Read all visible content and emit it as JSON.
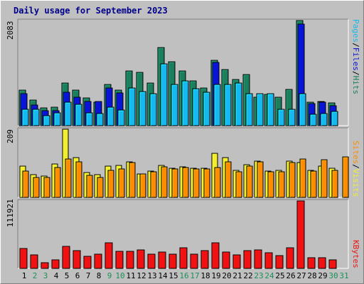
{
  "title": "Daily usage for September 2023",
  "colors": {
    "hits": "#1b7f5e",
    "files": "#0a14d6",
    "pages": "#16b9ef",
    "visits": "#f2ee2e",
    "sites": "#ff8c00",
    "kbytes": "#f01212",
    "weekday_label": "#000000",
    "weekend_label": "#1b8f5a",
    "background": "#c0c0c0"
  },
  "chart_data": [
    {
      "type": "bar",
      "name": "pages-files-hits",
      "legend": [
        "Pages",
        "Files",
        "Hits"
      ],
      "ymax_label": "2083",
      "ylim": [
        0,
        2083
      ],
      "categories": [
        "1",
        "2",
        "3",
        "4",
        "5",
        "6",
        "7",
        "8",
        "9",
        "10",
        "11",
        "12",
        "13",
        "14",
        "15",
        "16",
        "17",
        "18",
        "19",
        "20",
        "21",
        "22",
        "23",
        "24",
        "25",
        "26",
        "27",
        "28",
        "29",
        "30",
        "31"
      ],
      "series": [
        {
          "name": "Hits",
          "values": [
            700,
            500,
            350,
            360,
            850,
            700,
            550,
            470,
            820,
            700,
            1090,
            1060,
            840,
            1550,
            1270,
            1080,
            880,
            740,
            1300,
            1110,
            920,
            1010,
            560,
            620,
            560,
            720,
            2083,
            460,
            480,
            450,
            0
          ]
        },
        {
          "name": "Files",
          "values": [
            630,
            410,
            300,
            290,
            660,
            570,
            480,
            480,
            750,
            650,
            0,
            0,
            0,
            0,
            0,
            0,
            0,
            0,
            1250,
            0,
            0,
            0,
            0,
            0,
            0,
            0,
            2010,
            440,
            460,
            390,
            0
          ]
        },
        {
          "name": "Pages",
          "values": [
            330,
            330,
            200,
            250,
            460,
            420,
            260,
            240,
            370,
            310,
            740,
            680,
            640,
            1220,
            810,
            880,
            730,
            660,
            810,
            820,
            840,
            640,
            640,
            640,
            320,
            330,
            630,
            230,
            240,
            280,
            0
          ]
        }
      ]
    },
    {
      "type": "bar",
      "name": "sites-visits",
      "legend": [
        "Sites",
        "Visits"
      ],
      "ymax_label": "209",
      "ylim": [
        0,
        209
      ],
      "categories": [
        "1",
        "2",
        "3",
        "4",
        "5",
        "6",
        "7",
        "8",
        "9",
        "10",
        "11",
        "12",
        "13",
        "14",
        "15",
        "16",
        "17",
        "18",
        "19",
        "20",
        "21",
        "22",
        "23",
        "24",
        "25",
        "26",
        "27",
        "28",
        "29",
        "30",
        "31"
      ],
      "series": [
        {
          "name": "Visits",
          "values": [
            95,
            70,
            65,
            102,
            209,
            123,
            76,
            70,
            95,
            97,
            108,
            72,
            80,
            97,
            90,
            93,
            90,
            90,
            135,
            122,
            82,
            100,
            112,
            80,
            82,
            110,
            107,
            82,
            96,
            90,
            0
          ]
        },
        {
          "name": "Sites",
          "values": [
            81,
            60,
            61,
            91,
            118,
            108,
            67,
            62,
            83,
            86,
            107,
            71,
            78,
            94,
            87,
            91,
            88,
            88,
            92,
            108,
            78,
            95,
            109,
            78,
            79,
            107,
            117,
            81,
            115,
            82,
            124
          ]
        }
      ]
    },
    {
      "type": "bar",
      "name": "kbytes",
      "legend": [
        "KBytes"
      ],
      "ymax_label": "111921",
      "ylim": [
        0,
        111921
      ],
      "categories": [
        "1",
        "2",
        "3",
        "4",
        "5",
        "6",
        "7",
        "8",
        "9",
        "10",
        "11",
        "12",
        "13",
        "14",
        "15",
        "16",
        "17",
        "18",
        "19",
        "20",
        "21",
        "22",
        "23",
        "24",
        "25",
        "26",
        "27",
        "28",
        "29",
        "30",
        "31"
      ],
      "series": [
        {
          "name": "KBytes",
          "values": [
            33000,
            22000,
            10000,
            14000,
            36000,
            29000,
            20000,
            23000,
            42000,
            28000,
            28000,
            31000,
            23000,
            27000,
            24000,
            34000,
            23000,
            30000,
            43000,
            27000,
            22000,
            29000,
            31000,
            26000,
            21000,
            34000,
            111921,
            18000,
            18000,
            14000,
            0
          ]
        }
      ]
    }
  ],
  "days": [
    {
      "label": "1",
      "weekend": false
    },
    {
      "label": "2",
      "weekend": true
    },
    {
      "label": "3",
      "weekend": true
    },
    {
      "label": "4",
      "weekend": false
    },
    {
      "label": "5",
      "weekend": false
    },
    {
      "label": "6",
      "weekend": false
    },
    {
      "label": "7",
      "weekend": false
    },
    {
      "label": "8",
      "weekend": false
    },
    {
      "label": "9",
      "weekend": true
    },
    {
      "label": "10",
      "weekend": true
    },
    {
      "label": "11",
      "weekend": false
    },
    {
      "label": "12",
      "weekend": false
    },
    {
      "label": "13",
      "weekend": false
    },
    {
      "label": "14",
      "weekend": false
    },
    {
      "label": "15",
      "weekend": false
    },
    {
      "label": "16",
      "weekend": true
    },
    {
      "label": "17",
      "weekend": true
    },
    {
      "label": "18",
      "weekend": false
    },
    {
      "label": "19",
      "weekend": false
    },
    {
      "label": "20",
      "weekend": false
    },
    {
      "label": "21",
      "weekend": false
    },
    {
      "label": "22",
      "weekend": false
    },
    {
      "label": "23",
      "weekend": true
    },
    {
      "label": "24",
      "weekend": true
    },
    {
      "label": "25",
      "weekend": false
    },
    {
      "label": "26",
      "weekend": false
    },
    {
      "label": "27",
      "weekend": false
    },
    {
      "label": "28",
      "weekend": false
    },
    {
      "label": "29",
      "weekend": false
    },
    {
      "label": "30",
      "weekend": true
    },
    {
      "label": "31",
      "weekend": true
    }
  ]
}
